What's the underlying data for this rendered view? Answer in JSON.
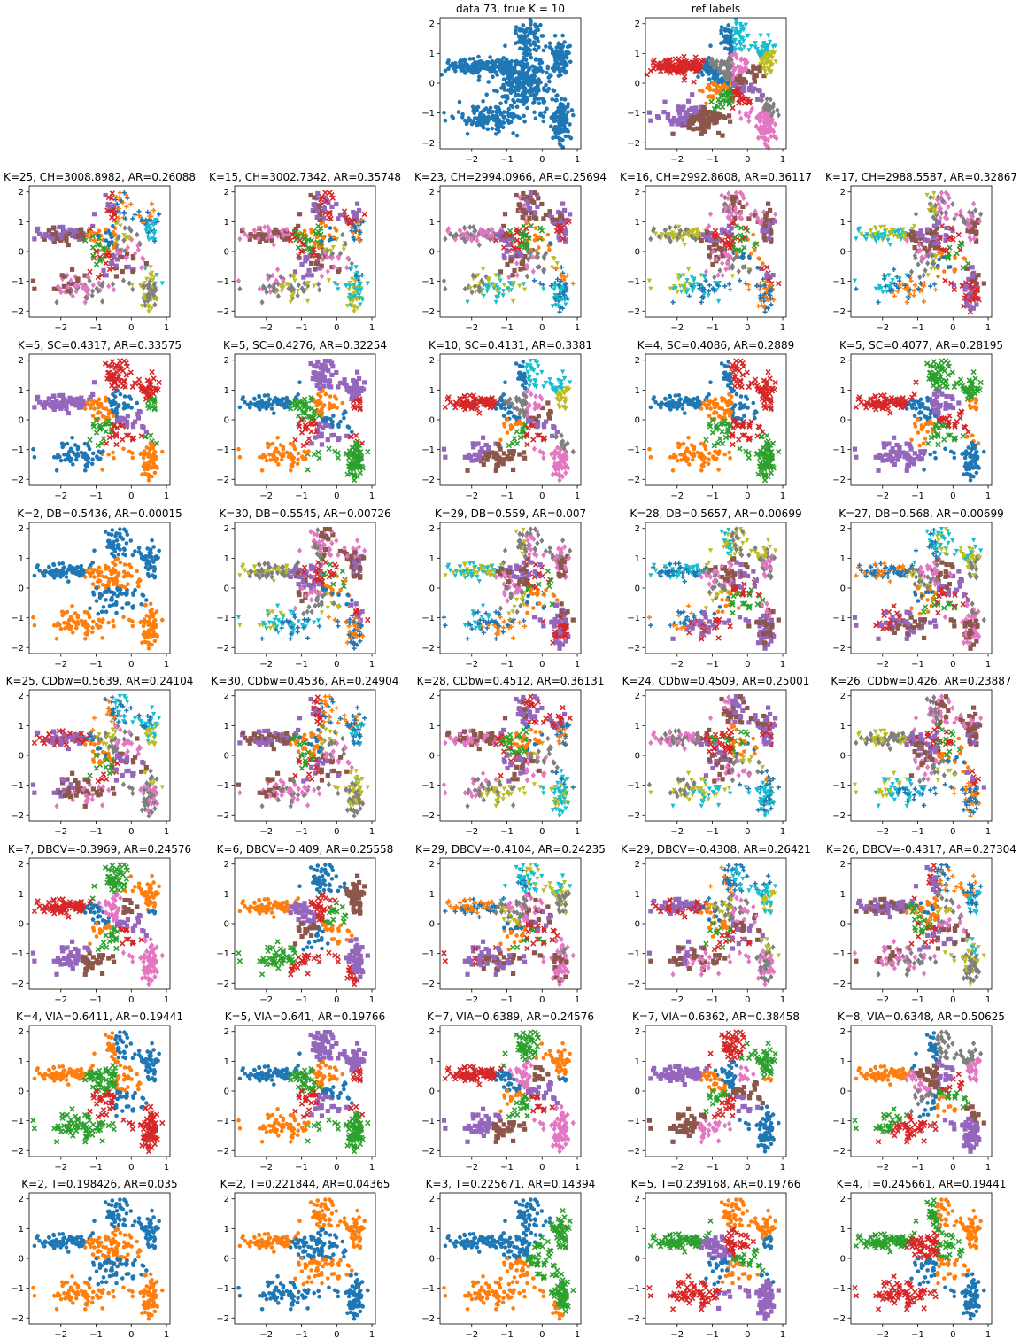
{
  "page": {
    "rows": 8,
    "cols": 5
  },
  "palette": [
    "#1f77b4",
    "#ff7f0e",
    "#2ca02c",
    "#d62728",
    "#9467bd",
    "#8c564b",
    "#e377c2",
    "#7f7f7f",
    "#bcbd22",
    "#17becf"
  ],
  "chart_data": [
    {
      "type": "scatter",
      "title": "data 73, true K = 10",
      "row": 0,
      "col": 2,
      "K": 1,
      "xlim": [
        -2.9,
        1.1
      ],
      "ylim": [
        -2.2,
        2.2
      ],
      "xticks": [
        -2,
        -1,
        0,
        1
      ],
      "yticks": [
        -2,
        -1,
        0,
        1,
        2
      ]
    },
    {
      "type": "scatter",
      "title": "ref labels",
      "row": 0,
      "col": 3,
      "K": 10,
      "xlim": [
        -2.9,
        1.1
      ],
      "ylim": [
        -2.2,
        2.2
      ],
      "xticks": [
        -2,
        -1,
        0,
        1
      ],
      "yticks": [
        -2,
        -1,
        0,
        1,
        2
      ]
    },
    {
      "type": "scatter",
      "title": "K=25, CH=3008.8982, AR=0.26088",
      "row": 1,
      "col": 0,
      "K": 25,
      "xlim": [
        -2.9,
        1.1
      ],
      "ylim": [
        -2.2,
        2.2
      ],
      "xticks": [
        -2,
        -1,
        0,
        1
      ],
      "yticks": [
        -2,
        -1,
        0,
        1,
        2
      ]
    },
    {
      "type": "scatter",
      "title": "K=15, CH=3002.7342, AR=0.35748",
      "row": 1,
      "col": 1,
      "K": 15,
      "xlim": [
        -2.9,
        1.1
      ],
      "ylim": [
        -2.2,
        2.2
      ],
      "xticks": [
        -2,
        -1,
        0,
        1
      ],
      "yticks": [
        -2,
        -1,
        0,
        1,
        2
      ]
    },
    {
      "type": "scatter",
      "title": "K=23, CH=2994.0966, AR=0.25694",
      "row": 1,
      "col": 2,
      "K": 23,
      "xlim": [
        -2.9,
        1.1
      ],
      "ylim": [
        -2.2,
        2.2
      ],
      "xticks": [
        -2,
        -1,
        0,
        1
      ],
      "yticks": [
        -2,
        -1,
        0,
        1,
        2
      ]
    },
    {
      "type": "scatter",
      "title": "K=16, CH=2992.8608, AR=0.36117",
      "row": 1,
      "col": 3,
      "K": 16,
      "xlim": [
        -2.9,
        1.1
      ],
      "ylim": [
        -2.2,
        2.2
      ],
      "xticks": [
        -2,
        -1,
        0,
        1
      ],
      "yticks": [
        -2,
        -1,
        0,
        1,
        2
      ]
    },
    {
      "type": "scatter",
      "title": "K=17, CH=2988.5587, AR=0.32867",
      "row": 1,
      "col": 4,
      "K": 17,
      "xlim": [
        -2.9,
        1.1
      ],
      "ylim": [
        -2.2,
        2.2
      ],
      "xticks": [
        -2,
        -1,
        0,
        1
      ],
      "yticks": [
        -2,
        -1,
        0,
        1,
        2
      ]
    },
    {
      "type": "scatter",
      "title": "K=5, SC=0.4317, AR=0.33575",
      "row": 2,
      "col": 0,
      "K": 5,
      "xlim": [
        -2.9,
        1.1
      ],
      "ylim": [
        -2.2,
        2.2
      ],
      "xticks": [
        -2,
        -1,
        0,
        1
      ],
      "yticks": [
        -2,
        -1,
        0,
        1,
        2
      ]
    },
    {
      "type": "scatter",
      "title": "K=5, SC=0.4276, AR=0.32254",
      "row": 2,
      "col": 1,
      "K": 5,
      "xlim": [
        -2.9,
        1.1
      ],
      "ylim": [
        -2.2,
        2.2
      ],
      "xticks": [
        -2,
        -1,
        0,
        1
      ],
      "yticks": [
        -2,
        -1,
        0,
        1,
        2
      ]
    },
    {
      "type": "scatter",
      "title": "K=10, SC=0.4131, AR=0.3381",
      "row": 2,
      "col": 2,
      "K": 10,
      "xlim": [
        -2.9,
        1.1
      ],
      "ylim": [
        -2.2,
        2.2
      ],
      "xticks": [
        -2,
        -1,
        0,
        1
      ],
      "yticks": [
        -2,
        -1,
        0,
        1,
        2
      ]
    },
    {
      "type": "scatter",
      "title": "K=4, SC=0.4086, AR=0.2889",
      "row": 2,
      "col": 3,
      "K": 4,
      "xlim": [
        -2.9,
        1.1
      ],
      "ylim": [
        -2.2,
        2.2
      ],
      "xticks": [
        -2,
        -1,
        0,
        1
      ],
      "yticks": [
        -2,
        -1,
        0,
        1,
        2
      ]
    },
    {
      "type": "scatter",
      "title": "K=5, SC=0.4077, AR=0.28195",
      "row": 2,
      "col": 4,
      "K": 5,
      "xlim": [
        -2.9,
        1.1
      ],
      "ylim": [
        -2.2,
        2.2
      ],
      "xticks": [
        -2,
        -1,
        0,
        1
      ],
      "yticks": [
        -2,
        -1,
        0,
        1,
        2
      ]
    },
    {
      "type": "scatter",
      "title": "K=2, DB=0.5436, AR=0.00015",
      "row": 3,
      "col": 0,
      "K": 2,
      "xlim": [
        -2.9,
        1.1
      ],
      "ylim": [
        -2.2,
        2.2
      ],
      "xticks": [
        -2,
        -1,
        0,
        1
      ],
      "yticks": [
        -2,
        -1,
        0,
        1,
        2
      ]
    },
    {
      "type": "scatter",
      "title": "K=30, DB=0.5545, AR=0.00726",
      "row": 3,
      "col": 1,
      "K": 30,
      "xlim": [
        -2.9,
        1.1
      ],
      "ylim": [
        -2.2,
        2.2
      ],
      "xticks": [
        -2,
        -1,
        0,
        1
      ],
      "yticks": [
        -2,
        -1,
        0,
        1,
        2
      ]
    },
    {
      "type": "scatter",
      "title": "K=29, DB=0.559, AR=0.007",
      "row": 3,
      "col": 2,
      "K": 29,
      "xlim": [
        -2.9,
        1.1
      ],
      "ylim": [
        -2.2,
        2.2
      ],
      "xticks": [
        -2,
        -1,
        0,
        1
      ],
      "yticks": [
        -2,
        -1,
        0,
        1,
        2
      ]
    },
    {
      "type": "scatter",
      "title": "K=28, DB=0.5657, AR=0.00699",
      "row": 3,
      "col": 3,
      "K": 28,
      "xlim": [
        -2.9,
        1.1
      ],
      "ylim": [
        -2.2,
        2.2
      ],
      "xticks": [
        -2,
        -1,
        0,
        1
      ],
      "yticks": [
        -2,
        -1,
        0,
        1,
        2
      ]
    },
    {
      "type": "scatter",
      "title": "K=27, DB=0.568, AR=0.00699",
      "row": 3,
      "col": 4,
      "K": 27,
      "xlim": [
        -2.9,
        1.1
      ],
      "ylim": [
        -2.2,
        2.2
      ],
      "xticks": [
        -2,
        -1,
        0,
        1
      ],
      "yticks": [
        -2,
        -1,
        0,
        1,
        2
      ]
    },
    {
      "type": "scatter",
      "title": "K=25, CDbw=0.5639, AR=0.24104",
      "row": 4,
      "col": 0,
      "K": 25,
      "xlim": [
        -2.9,
        1.1
      ],
      "ylim": [
        -2.2,
        2.2
      ],
      "xticks": [
        -2,
        -1,
        0,
        1
      ],
      "yticks": [
        -2,
        -1,
        0,
        1,
        2
      ]
    },
    {
      "type": "scatter",
      "title": "K=30, CDbw=0.4536, AR=0.24904",
      "row": 4,
      "col": 1,
      "K": 30,
      "xlim": [
        -2.9,
        1.1
      ],
      "ylim": [
        -2.2,
        2.2
      ],
      "xticks": [
        -2,
        -1,
        0,
        1
      ],
      "yticks": [
        -2,
        -1,
        0,
        1,
        2
      ]
    },
    {
      "type": "scatter",
      "title": "K=28, CDbw=0.4512, AR=0.36131",
      "row": 4,
      "col": 2,
      "K": 28,
      "xlim": [
        -2.9,
        1.1
      ],
      "ylim": [
        -2.2,
        2.2
      ],
      "xticks": [
        -2,
        -1,
        0,
        1
      ],
      "yticks": [
        -2,
        -1,
        0,
        1,
        2
      ]
    },
    {
      "type": "scatter",
      "title": "K=24, CDbw=0.4509, AR=0.25001",
      "row": 4,
      "col": 3,
      "K": 24,
      "xlim": [
        -2.9,
        1.1
      ],
      "ylim": [
        -2.2,
        2.2
      ],
      "xticks": [
        -2,
        -1,
        0,
        1
      ],
      "yticks": [
        -2,
        -1,
        0,
        1,
        2
      ]
    },
    {
      "type": "scatter",
      "title": "K=26, CDbw=0.426, AR=0.23887",
      "row": 4,
      "col": 4,
      "K": 26,
      "xlim": [
        -2.9,
        1.1
      ],
      "ylim": [
        -2.2,
        2.2
      ],
      "xticks": [
        -2,
        -1,
        0,
        1
      ],
      "yticks": [
        -2,
        -1,
        0,
        1,
        2
      ]
    },
    {
      "type": "scatter",
      "title": "K=7, DBCV=-0.3969, AR=0.24576",
      "row": 5,
      "col": 0,
      "K": 7,
      "xlim": [
        -2.9,
        1.1
      ],
      "ylim": [
        -2.2,
        2.2
      ],
      "xticks": [
        -2,
        -1,
        0,
        1
      ],
      "yticks": [
        -2,
        -1,
        0,
        1,
        2
      ]
    },
    {
      "type": "scatter",
      "title": "K=6, DBCV=-0.409, AR=0.25558",
      "row": 5,
      "col": 1,
      "K": 6,
      "xlim": [
        -2.9,
        1.1
      ],
      "ylim": [
        -2.2,
        2.2
      ],
      "xticks": [
        -2,
        -1,
        0,
        1
      ],
      "yticks": [
        -2,
        -1,
        0,
        1,
        2
      ]
    },
    {
      "type": "scatter",
      "title": "K=29, DBCV=-0.4104, AR=0.24235",
      "row": 5,
      "col": 2,
      "K": 29,
      "xlim": [
        -2.9,
        1.1
      ],
      "ylim": [
        -2.2,
        2.2
      ],
      "xticks": [
        -2,
        -1,
        0,
        1
      ],
      "yticks": [
        -2,
        -1,
        0,
        1,
        2
      ]
    },
    {
      "type": "scatter",
      "title": "K=29, DBCV=-0.4308, AR=0.26421",
      "row": 5,
      "col": 3,
      "K": 29,
      "xlim": [
        -2.9,
        1.1
      ],
      "ylim": [
        -2.2,
        2.2
      ],
      "xticks": [
        -2,
        -1,
        0,
        1
      ],
      "yticks": [
        -2,
        -1,
        0,
        1,
        2
      ]
    },
    {
      "type": "scatter",
      "title": "K=26, DBCV=-0.4317, AR=0.27304",
      "row": 5,
      "col": 4,
      "K": 26,
      "xlim": [
        -2.9,
        1.1
      ],
      "ylim": [
        -2.2,
        2.2
      ],
      "xticks": [
        -2,
        -1,
        0,
        1
      ],
      "yticks": [
        -2,
        -1,
        0,
        1,
        2
      ]
    },
    {
      "type": "scatter",
      "title": "K=4, VIA=0.6411, AR=0.19441",
      "row": 6,
      "col": 0,
      "K": 4,
      "xlim": [
        -2.9,
        1.1
      ],
      "ylim": [
        -2.2,
        2.2
      ],
      "xticks": [
        -2,
        -1,
        0,
        1
      ],
      "yticks": [
        -2,
        -1,
        0,
        1,
        2
      ]
    },
    {
      "type": "scatter",
      "title": "K=5, VIA=0.641, AR=0.19766",
      "row": 6,
      "col": 1,
      "K": 5,
      "xlim": [
        -2.9,
        1.1
      ],
      "ylim": [
        -2.2,
        2.2
      ],
      "xticks": [
        -2,
        -1,
        0,
        1
      ],
      "yticks": [
        -2,
        -1,
        0,
        1,
        2
      ]
    },
    {
      "type": "scatter",
      "title": "K=7, VIA=0.6389, AR=0.24576",
      "row": 6,
      "col": 2,
      "K": 7,
      "xlim": [
        -2.9,
        1.1
      ],
      "ylim": [
        -2.2,
        2.2
      ],
      "xticks": [
        -2,
        -1,
        0,
        1
      ],
      "yticks": [
        -2,
        -1,
        0,
        1,
        2
      ]
    },
    {
      "type": "scatter",
      "title": "K=7, VIA=0.6362, AR=0.38458",
      "row": 6,
      "col": 3,
      "K": 7,
      "xlim": [
        -2.9,
        1.1
      ],
      "ylim": [
        -2.2,
        2.2
      ],
      "xticks": [
        -2,
        -1,
        0,
        1
      ],
      "yticks": [
        -2,
        -1,
        0,
        1,
        2
      ]
    },
    {
      "type": "scatter",
      "title": "K=8, VIA=0.6348, AR=0.50625",
      "row": 6,
      "col": 4,
      "K": 8,
      "xlim": [
        -2.9,
        1.1
      ],
      "ylim": [
        -2.2,
        2.2
      ],
      "xticks": [
        -2,
        -1,
        0,
        1
      ],
      "yticks": [
        -2,
        -1,
        0,
        1,
        2
      ]
    },
    {
      "type": "scatter",
      "title": "K=2, T=0.198426, AR=0.035",
      "row": 7,
      "col": 0,
      "K": 2,
      "xlim": [
        -2.9,
        1.1
      ],
      "ylim": [
        -2.2,
        2.2
      ],
      "xticks": [
        -2,
        -1,
        0,
        1
      ],
      "yticks": [
        -2,
        -1,
        0,
        1,
        2
      ]
    },
    {
      "type": "scatter",
      "title": "K=2, T=0.221844, AR=0.04365",
      "row": 7,
      "col": 1,
      "K": 2,
      "xlim": [
        -2.9,
        1.1
      ],
      "ylim": [
        -2.2,
        2.2
      ],
      "xticks": [
        -2,
        -1,
        0,
        1
      ],
      "yticks": [
        -2,
        -1,
        0,
        1,
        2
      ]
    },
    {
      "type": "scatter",
      "title": "K=3, T=0.225671, AR=0.14394",
      "row": 7,
      "col": 2,
      "K": 3,
      "xlim": [
        -2.9,
        1.1
      ],
      "ylim": [
        -2.2,
        2.2
      ],
      "xticks": [
        -2,
        -1,
        0,
        1
      ],
      "yticks": [
        -2,
        -1,
        0,
        1,
        2
      ]
    },
    {
      "type": "scatter",
      "title": "K=5, T=0.239168, AR=0.19766",
      "row": 7,
      "col": 3,
      "K": 5,
      "xlim": [
        -2.9,
        1.1
      ],
      "ylim": [
        -2.2,
        2.2
      ],
      "xticks": [
        -2,
        -1,
        0,
        1
      ],
      "yticks": [
        -2,
        -1,
        0,
        1,
        2
      ]
    },
    {
      "type": "scatter",
      "title": "K=4, T=0.245661, AR=0.19441",
      "row": 7,
      "col": 4,
      "K": 4,
      "xlim": [
        -2.9,
        1.1
      ],
      "ylim": [
        -2.2,
        2.2
      ],
      "xticks": [
        -2,
        -1,
        0,
        1
      ],
      "yticks": [
        -2,
        -1,
        0,
        1,
        2
      ]
    }
  ]
}
